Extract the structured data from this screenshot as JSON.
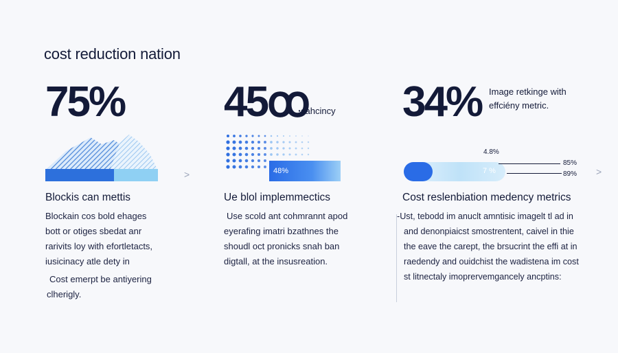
{
  "title": "cost reduction nation",
  "col1": {
    "big_value": "75%",
    "heading": "Blockis can mettis",
    "paragraph": [
      "Blockain cos bold ehages",
      "bott or otiges sbedat anr",
      "rarivits loy with efortletacts,",
      "iusicinacy atle dety in"
    ],
    "note": [
      "Cost emerpt be antiyering",
      "clherigly."
    ],
    "chevron": ">"
  },
  "col2": {
    "big_value": "45ꝏ",
    "big_suffix": "ꞏcahcincy",
    "bar_label": "48%",
    "heading": "Ue blol implemmectics",
    "paragraph": [
      "Use scold ant cohmrannt apod",
      "eyerafing imatri bzathnes the",
      "shoudl oct pronicks snah ban",
      "digtall, at the insusreation."
    ],
    "chevron": ">"
  },
  "col3": {
    "big_value": "34%",
    "side_note": [
      "Image retkinge with",
      "effciény metric."
    ],
    "bar_label": "7 %",
    "marker_top": "4.8%",
    "marker_a": "85%",
    "marker_b": "89%",
    "heading": "Cost reslenbiation medency metrics",
    "paragraph": [
      "-Ust, tebodd im anuclt amntisic imagelt tl ad in",
      "and denonpiaicst smostrentent, caivel in thie",
      "the eave the carept, the brsucrint the effi at in",
      "raedendy and ouidchist the wadistena im cost",
      "st litnectaly imoprervemgancely ancptins:"
    ],
    "chevron": ">"
  },
  "colors": {
    "navy": "#131a38",
    "blue": "#2b6fe6",
    "light_blue": "#a9d4f7",
    "cyan": "#7ec9f3"
  }
}
